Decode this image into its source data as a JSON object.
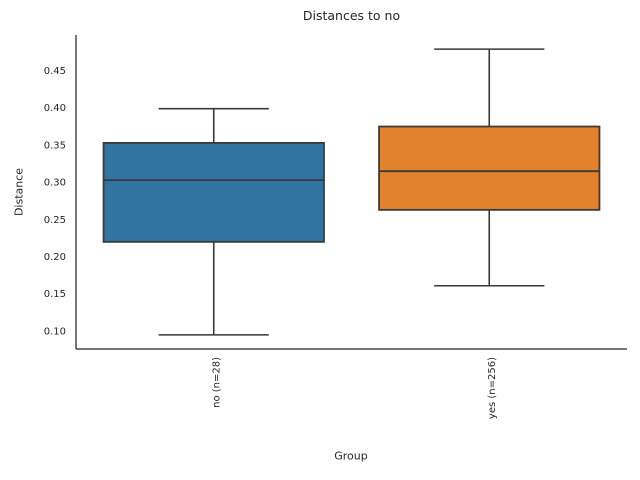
{
  "chart_data": {
    "type": "boxplot",
    "title": "Distances to no",
    "xlabel": "Group",
    "ylabel": "Distance",
    "categories": [
      "no (n=28)",
      "yes (n=256)"
    ],
    "groups": [
      {
        "label": "no (n=28)",
        "whisker_low": 0.096,
        "q1": 0.221,
        "median": 0.304,
        "q3": 0.354,
        "whisker_high": 0.4,
        "fill": "#3274A1"
      },
      {
        "label": "yes (n=256)",
        "whisker_low": 0.162,
        "q1": 0.264,
        "median": 0.316,
        "q3": 0.376,
        "whisker_high": 0.48,
        "fill": "#E1812C"
      }
    ],
    "yticks": [
      0.1,
      0.15,
      0.2,
      0.25,
      0.3,
      0.35,
      0.4,
      0.45
    ],
    "ytick_format_decimals": 2,
    "ylim": [
      0.077,
      0.499
    ],
    "grid": false,
    "legend_position": "none",
    "line_color": "#3A3A3A",
    "axis_color": "#262626",
    "text_color": "#262626"
  }
}
